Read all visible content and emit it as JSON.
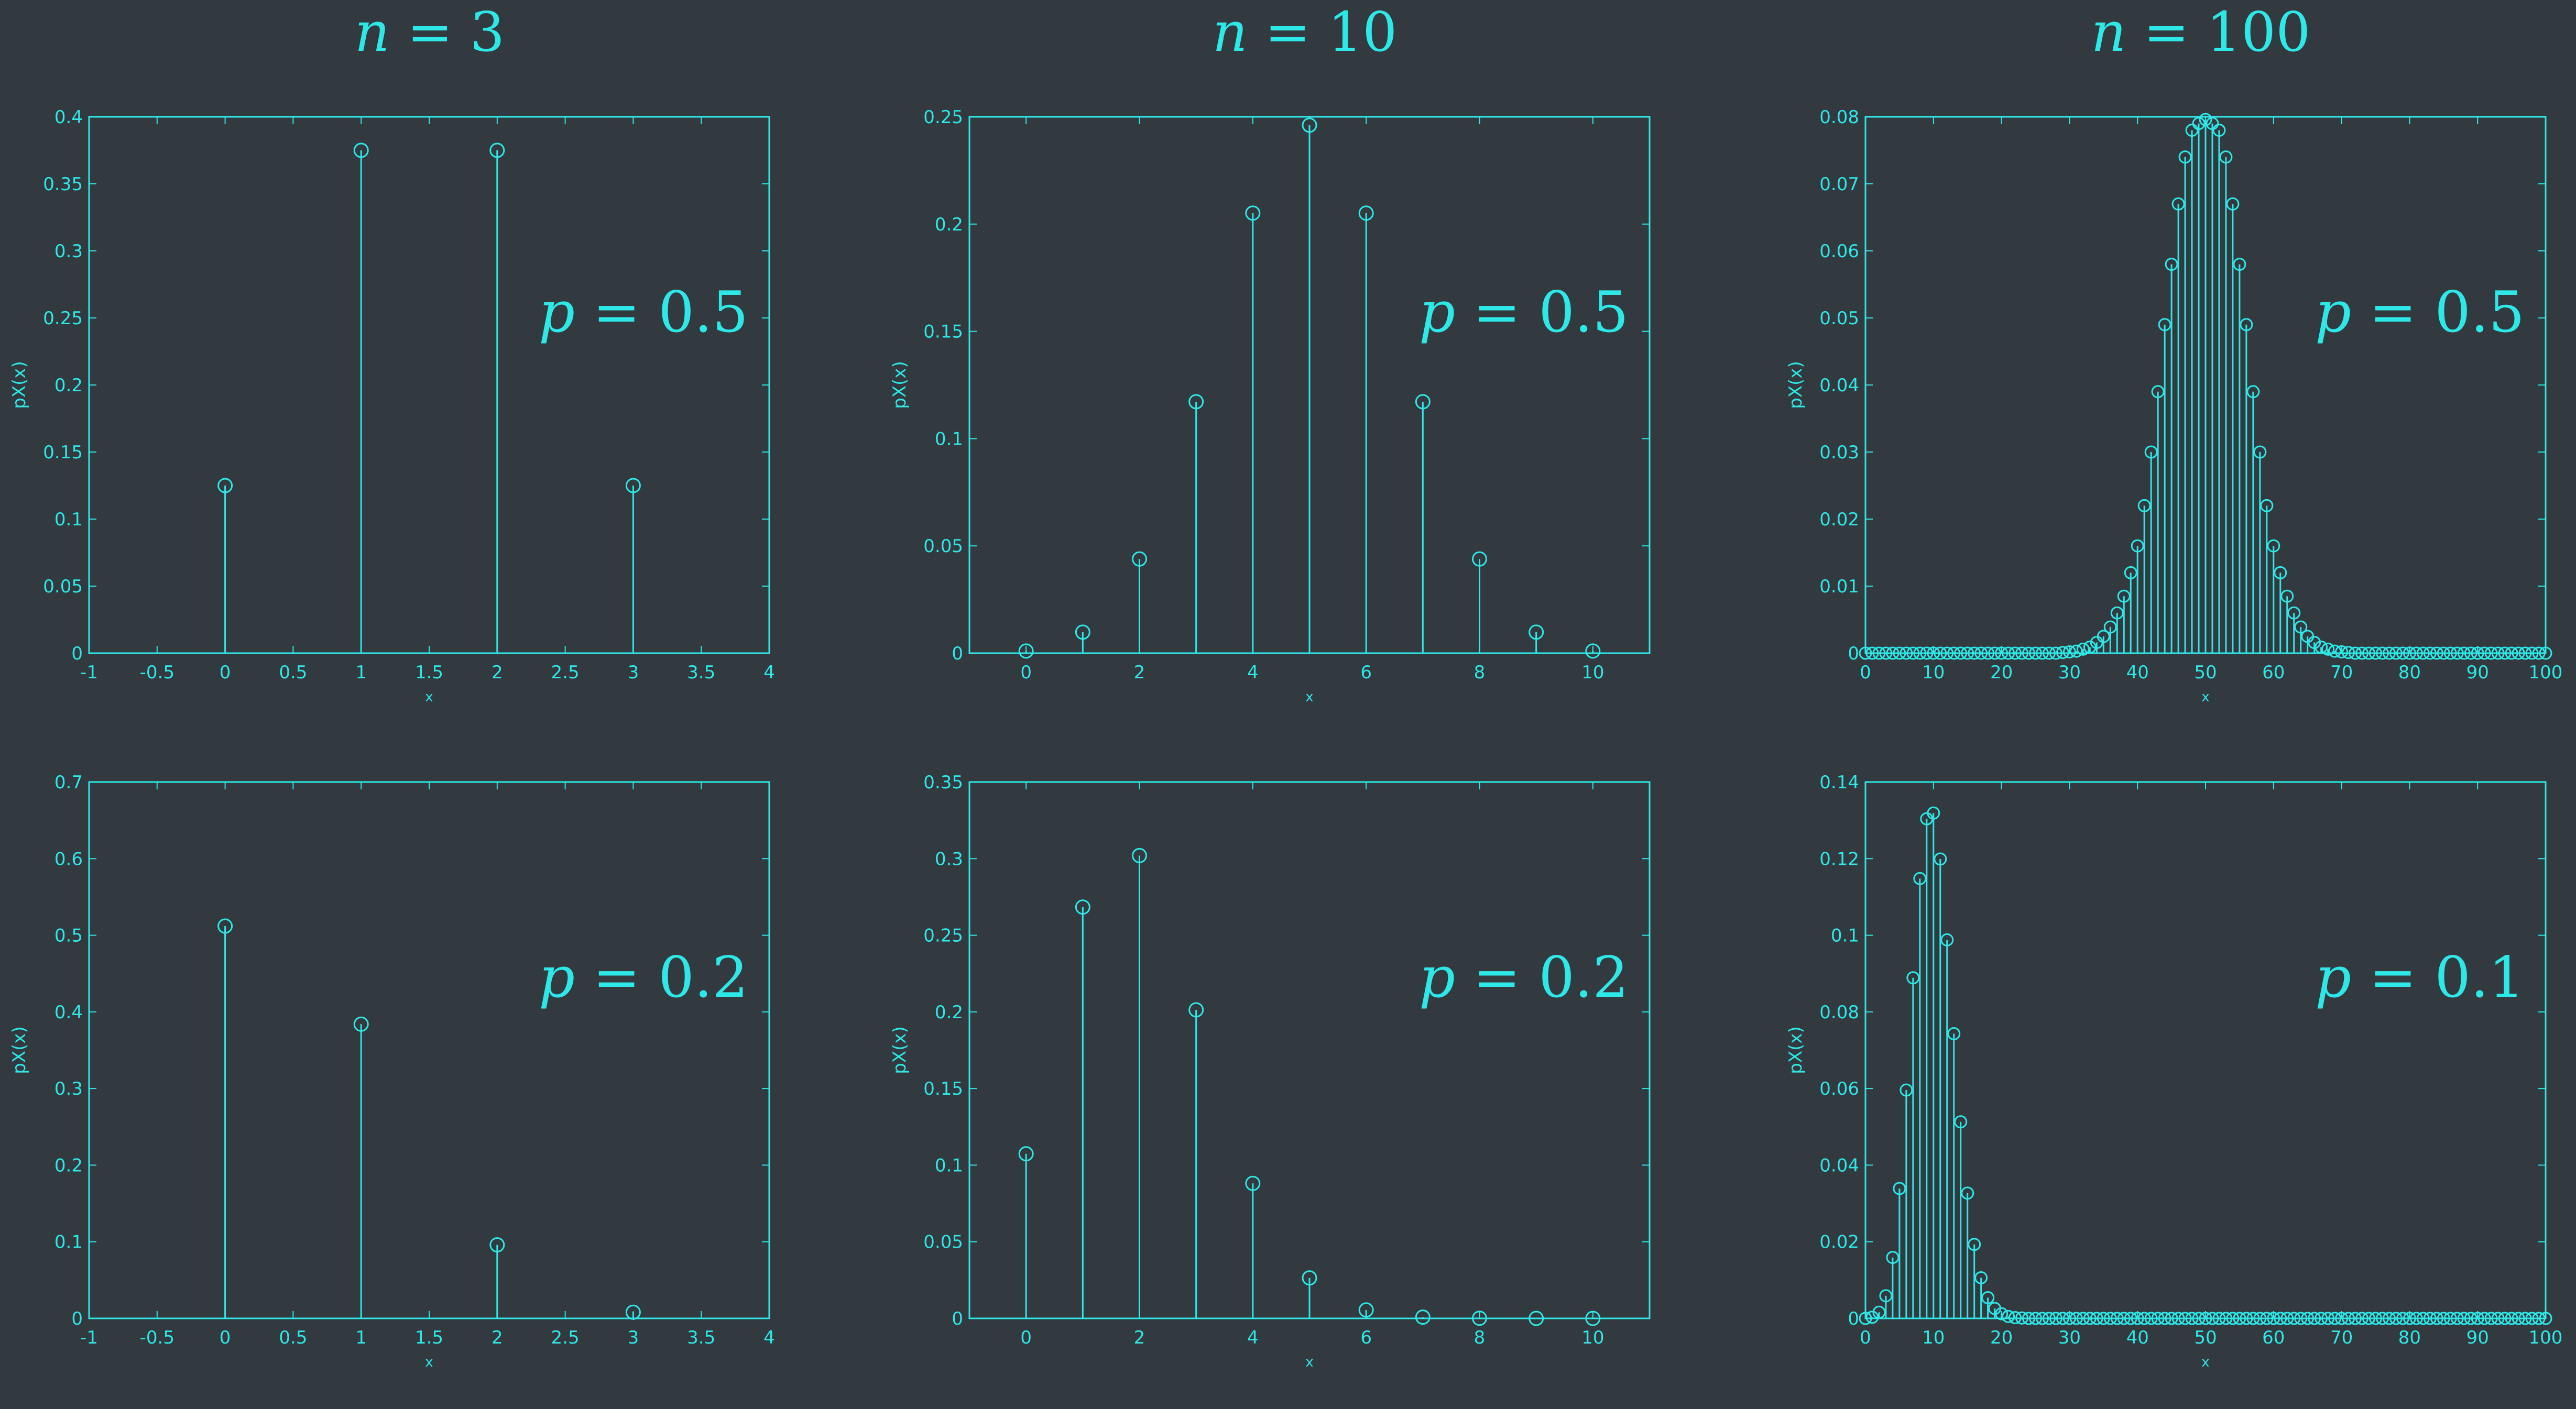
{
  "column_titles": [
    {
      "var": "n",
      "eq": " = 3"
    },
    {
      "var": "n",
      "eq": " = 10"
    },
    {
      "var": "n",
      "eq": " = 100"
    }
  ],
  "colors": {
    "background": "#323a40",
    "foreground": "#2ee8e8"
  },
  "chart_data": [
    {
      "type": "stem",
      "title": "",
      "xlabel": "x",
      "ylabel": "pX(x)",
      "annotation": {
        "var": "p",
        "eq": " = 0.5"
      },
      "xlim": [
        -1,
        4
      ],
      "ylim": [
        0,
        0.4
      ],
      "xticks": [
        -1,
        -0.5,
        0,
        0.5,
        1,
        1.5,
        2,
        2.5,
        3,
        3.5,
        4
      ],
      "xtick_labels": [
        "-1",
        "-0.5",
        "0",
        "0.5",
        "1",
        "1.5",
        "2",
        "2.5",
        "3",
        "3.5",
        "4"
      ],
      "yticks": [
        0,
        0.05,
        0.1,
        0.15,
        0.2,
        0.25,
        0.3,
        0.35,
        0.4
      ],
      "ytick_labels": [
        "0",
        "0.05",
        "0.1",
        "0.15",
        "0.2",
        "0.25",
        "0.3",
        "0.35",
        "0.4"
      ],
      "x": [
        0,
        1,
        2,
        3
      ],
      "y": [
        0.125,
        0.375,
        0.375,
        0.125
      ]
    },
    {
      "type": "stem",
      "title": "",
      "xlabel": "x",
      "ylabel": "pX(x)",
      "annotation": {
        "var": "p",
        "eq": " = 0.5"
      },
      "xlim": [
        -1,
        11
      ],
      "ylim": [
        0,
        0.25
      ],
      "xticks": [
        0,
        2,
        4,
        6,
        8,
        10
      ],
      "xtick_labels": [
        "0",
        "2",
        "4",
        "6",
        "8",
        "10"
      ],
      "yticks": [
        0,
        0.05,
        0.1,
        0.15,
        0.2,
        0.25
      ],
      "ytick_labels": [
        "0",
        "0.05",
        "0.1",
        "0.15",
        "0.2",
        "0.25"
      ],
      "x": [
        0,
        1,
        2,
        3,
        4,
        5,
        6,
        7,
        8,
        9,
        10
      ],
      "y": [
        0.001,
        0.0098,
        0.0439,
        0.1172,
        0.2051,
        0.2461,
        0.2051,
        0.1172,
        0.0439,
        0.0098,
        0.001
      ]
    },
    {
      "type": "stem",
      "title": "",
      "xlabel": "x",
      "ylabel": "pX(x)",
      "annotation": {
        "var": "p",
        "eq": " = 0.5"
      },
      "xlim": [
        0,
        100
      ],
      "ylim": [
        0,
        0.08
      ],
      "xticks": [
        0,
        10,
        20,
        30,
        40,
        50,
        60,
        70,
        80,
        90,
        100
      ],
      "xtick_labels": [
        "0",
        "10",
        "20",
        "30",
        "40",
        "50",
        "60",
        "70",
        "80",
        "90",
        "100"
      ],
      "yticks": [
        0,
        0.01,
        0.02,
        0.03,
        0.04,
        0.05,
        0.06,
        0.07,
        0.08
      ],
      "ytick_labels": [
        "0",
        "0.01",
        "0.02",
        "0.03",
        "0.04",
        "0.05",
        "0.06",
        "0.07",
        "0.08"
      ],
      "x": [
        0,
        1,
        2,
        3,
        4,
        5,
        6,
        7,
        8,
        9,
        10,
        11,
        12,
        13,
        14,
        15,
        16,
        17,
        18,
        19,
        20,
        21,
        22,
        23,
        24,
        25,
        26,
        27,
        28,
        29,
        30,
        31,
        32,
        33,
        34,
        35,
        36,
        37,
        38,
        39,
        40,
        41,
        42,
        43,
        44,
        45,
        46,
        47,
        48,
        49,
        50,
        51,
        52,
        53,
        54,
        55,
        56,
        57,
        58,
        59,
        60,
        61,
        62,
        63,
        64,
        65,
        66,
        67,
        68,
        69,
        70,
        71,
        72,
        73,
        74,
        75,
        76,
        77,
        78,
        79,
        80,
        81,
        82,
        83,
        84,
        85,
        86,
        87,
        88,
        89,
        90,
        91,
        92,
        93,
        94,
        95,
        96,
        97,
        98,
        99,
        100
      ],
      "y": [
        0,
        0,
        0,
        0,
        0,
        0,
        0,
        0,
        0,
        0,
        0,
        0,
        0,
        0,
        0,
        0,
        0,
        0,
        0,
        0,
        0,
        0,
        0,
        0,
        0,
        0,
        0,
        0,
        0,
        0.0001,
        0.0002,
        0.0003,
        0.0006,
        0.0009,
        0.0016,
        0.0025,
        0.0039,
        0.006,
        0.0085,
        0.012,
        0.016,
        0.022,
        0.03,
        0.039,
        0.049,
        0.058,
        0.067,
        0.074,
        0.078,
        0.079,
        0.0796,
        0.079,
        0.078,
        0.074,
        0.067,
        0.058,
        0.049,
        0.039,
        0.03,
        0.022,
        0.016,
        0.012,
        0.0085,
        0.006,
        0.0039,
        0.0025,
        0.0016,
        0.0009,
        0.0006,
        0.0003,
        0.0002,
        0.0001,
        0,
        0,
        0,
        0,
        0,
        0,
        0,
        0,
        0,
        0,
        0,
        0,
        0,
        0,
        0,
        0,
        0,
        0,
        0,
        0,
        0,
        0,
        0,
        0,
        0,
        0,
        0,
        0,
        0
      ]
    },
    {
      "type": "stem",
      "title": "",
      "xlabel": "x",
      "ylabel": "pX(x)",
      "annotation": {
        "var": "p",
        "eq": " = 0.2"
      },
      "xlim": [
        -1,
        4
      ],
      "ylim": [
        0,
        0.7
      ],
      "xticks": [
        -1,
        -0.5,
        0,
        0.5,
        1,
        1.5,
        2,
        2.5,
        3,
        3.5,
        4
      ],
      "xtick_labels": [
        "-1",
        "-0.5",
        "0",
        "0.5",
        "1",
        "1.5",
        "2",
        "2.5",
        "3",
        "3.5",
        "4"
      ],
      "yticks": [
        0,
        0.1,
        0.2,
        0.3,
        0.4,
        0.5,
        0.6,
        0.7
      ],
      "ytick_labels": [
        "0",
        "0.1",
        "0.2",
        "0.3",
        "0.4",
        "0.5",
        "0.6",
        "0.7"
      ],
      "x": [
        0,
        1,
        2,
        3
      ],
      "y": [
        0.512,
        0.384,
        0.096,
        0.008
      ]
    },
    {
      "type": "stem",
      "title": "",
      "xlabel": "x",
      "ylabel": "pX(x)",
      "annotation": {
        "var": "p",
        "eq": " = 0.2"
      },
      "xlim": [
        -1,
        11
      ],
      "ylim": [
        0,
        0.35
      ],
      "xticks": [
        0,
        2,
        4,
        6,
        8,
        10
      ],
      "xtick_labels": [
        "0",
        "2",
        "4",
        "6",
        "8",
        "10"
      ],
      "yticks": [
        0,
        0.05,
        0.1,
        0.15,
        0.2,
        0.25,
        0.3,
        0.35
      ],
      "ytick_labels": [
        "0",
        "0.05",
        "0.1",
        "0.15",
        "0.2",
        "0.25",
        "0.3",
        "0.35"
      ],
      "x": [
        0,
        1,
        2,
        3,
        4,
        5,
        6,
        7,
        8,
        9,
        10
      ],
      "y": [
        0.1074,
        0.2684,
        0.302,
        0.2013,
        0.0881,
        0.0264,
        0.0055,
        0.0008,
        0.0001,
        0,
        0
      ]
    },
    {
      "type": "stem",
      "title": "",
      "xlabel": "x",
      "ylabel": "pX(x)",
      "annotation": {
        "var": "p",
        "eq": " = 0.1"
      },
      "xlim": [
        0,
        100
      ],
      "ylim": [
        0,
        0.14
      ],
      "xticks": [
        0,
        10,
        20,
        30,
        40,
        50,
        60,
        70,
        80,
        90,
        100
      ],
      "xtick_labels": [
        "0",
        "10",
        "20",
        "30",
        "40",
        "50",
        "60",
        "70",
        "80",
        "90",
        "100"
      ],
      "yticks": [
        0,
        0.02,
        0.04,
        0.06,
        0.08,
        0.1,
        0.12,
        0.14
      ],
      "ytick_labels": [
        "0",
        "0.02",
        "0.04",
        "0.06",
        "0.08",
        "0.1",
        "0.12",
        "0.14"
      ],
      "x": [
        0,
        1,
        2,
        3,
        4,
        5,
        6,
        7,
        8,
        9,
        10,
        11,
        12,
        13,
        14,
        15,
        16,
        17,
        18,
        19,
        20,
        21,
        22,
        23,
        24,
        25,
        26,
        27,
        28,
        29,
        30,
        31,
        32,
        33,
        34,
        35,
        36,
        37,
        38,
        39,
        40,
        41,
        42,
        43,
        44,
        45,
        46,
        47,
        48,
        49,
        50,
        51,
        52,
        53,
        54,
        55,
        56,
        57,
        58,
        59,
        60,
        61,
        62,
        63,
        64,
        65,
        66,
        67,
        68,
        69,
        70,
        71,
        72,
        73,
        74,
        75,
        76,
        77,
        78,
        79,
        80,
        81,
        82,
        83,
        84,
        85,
        86,
        87,
        88,
        89,
        90,
        91,
        92,
        93,
        94,
        95,
        96,
        97,
        98,
        99,
        100
      ],
      "y": [
        0,
        0.0003,
        0.0016,
        0.0059,
        0.0159,
        0.0339,
        0.0596,
        0.0889,
        0.1148,
        0.1304,
        0.1319,
        0.1199,
        0.0988,
        0.0743,
        0.0513,
        0.0327,
        0.0193,
        0.0106,
        0.0054,
        0.0026,
        0.0012,
        0.0005,
        0.0002,
        0.0001,
        0,
        0,
        0,
        0,
        0,
        0,
        0,
        0,
        0,
        0,
        0,
        0,
        0,
        0,
        0,
        0,
        0,
        0,
        0,
        0,
        0,
        0,
        0,
        0,
        0,
        0,
        0,
        0,
        0,
        0,
        0,
        0,
        0,
        0,
        0,
        0,
        0,
        0,
        0,
        0,
        0,
        0,
        0,
        0,
        0,
        0,
        0,
        0,
        0,
        0,
        0,
        0,
        0,
        0,
        0,
        0,
        0,
        0,
        0,
        0,
        0,
        0,
        0,
        0,
        0,
        0,
        0,
        0,
        0,
        0,
        0,
        0,
        0,
        0,
        0,
        0,
        0
      ]
    }
  ]
}
